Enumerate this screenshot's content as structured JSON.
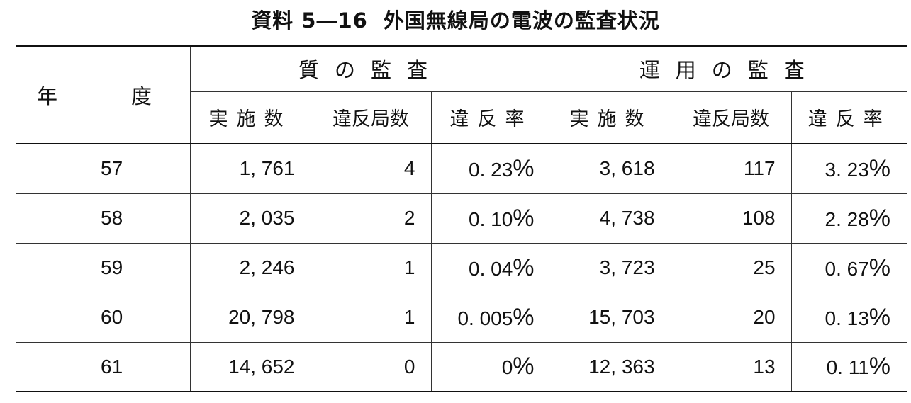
{
  "title": {
    "prefix": "資料 5―16",
    "text": "外国無線局の電波の監査状況"
  },
  "header": {
    "year_label_1": "年",
    "year_label_2": "度",
    "quality_group": "質の監査",
    "operation_group": "運用の監査",
    "quality_columns": [
      "実施数",
      "違反局数",
      "違反率"
    ],
    "operation_columns": [
      "実施数",
      "違反局数",
      "違反率"
    ]
  },
  "rows": [
    {
      "year": "57",
      "q_count": "1, 761",
      "q_violations": "4",
      "q_rate": "0. 23",
      "o_count": "3, 618",
      "o_violations": "117",
      "o_rate": "3. 23"
    },
    {
      "year": "58",
      "q_count": "2, 035",
      "q_violations": "2",
      "q_rate": "0. 10",
      "o_count": "4, 738",
      "o_violations": "108",
      "o_rate": "2. 28"
    },
    {
      "year": "59",
      "q_count": "2, 246",
      "q_violations": "1",
      "q_rate": "0. 04",
      "o_count": "3, 723",
      "o_violations": "25",
      "o_rate": "0. 67"
    },
    {
      "year": "60",
      "q_count": "20, 798",
      "q_violations": "1",
      "q_rate": "0. 005",
      "o_count": "15, 703",
      "o_violations": "20",
      "o_rate": "0. 13"
    },
    {
      "year": "61",
      "q_count": "14, 652",
      "q_violations": "0",
      "q_rate": "0",
      "o_count": "12, 363",
      "o_violations": "13",
      "o_rate": "0. 11"
    }
  ],
  "percent_sign": "%"
}
